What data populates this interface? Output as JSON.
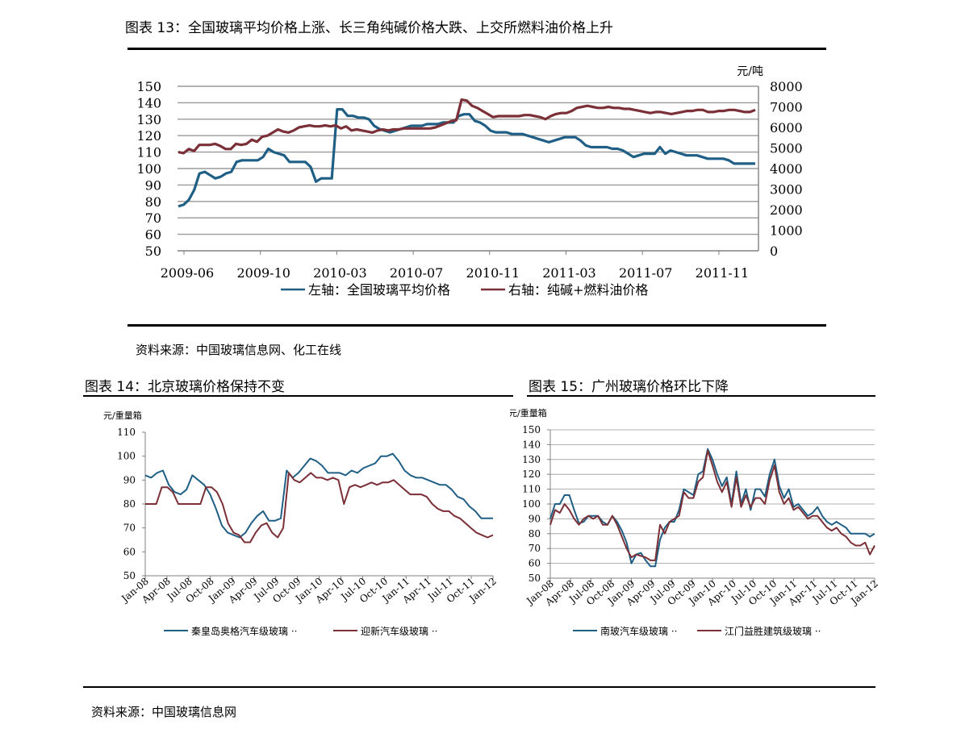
{
  "colors": {
    "blue": "#1f5f85",
    "red": "#7b2f36",
    "grid": "#9a9a9a",
    "axis": "#808080"
  },
  "figure13": {
    "title": "图表 13：全国玻璃平均价格上涨、长三角纯碱价格大跌、上交所燃料油价格上升",
    "source": "资料来源：中国玻璃信息网、化工在线"
  },
  "figure14": {
    "title": "图表 14：北京玻璃价格保持不变"
  },
  "figure15": {
    "title": "图表 15：广州玻璃价格环比下降"
  },
  "bottom_source": "资料来源：中国玻璃信息网",
  "chart_data": [
    {
      "id": "c13",
      "type": "line",
      "unit_right": "元/吨",
      "x_ticks": [
        "2009-06",
        "2009-10",
        "2010-03",
        "2010-07",
        "2010-11",
        "2011-03",
        "2011-07",
        "2011-11"
      ],
      "ylim": [
        50,
        150
      ],
      "y_ticks": [
        50,
        60,
        70,
        80,
        90,
        100,
        110,
        120,
        130,
        140,
        150
      ],
      "y2lim": [
        0,
        8000
      ],
      "y2_ticks": [
        0,
        1000,
        2000,
        3000,
        4000,
        5000,
        6000,
        7000,
        8000
      ],
      "grid": true,
      "legend_position": "bottom",
      "series": [
        {
          "name": "左轴：全国玻璃平均价格",
          "axis": "left",
          "color": "#1f5f85",
          "values": [
            77,
            78,
            81,
            87,
            97,
            98,
            96,
            94,
            95,
            97,
            98,
            104,
            105,
            105,
            105,
            105,
            107,
            112,
            110,
            109,
            108,
            104,
            104,
            104,
            104,
            101,
            92,
            94,
            94,
            94,
            136,
            136,
            132,
            132,
            131,
            131,
            130,
            126,
            124,
            123,
            122,
            123,
            124,
            125,
            126,
            126,
            126,
            127,
            127,
            127,
            128,
            128,
            128,
            132,
            133,
            133,
            129,
            128,
            126,
            123,
            122,
            122,
            122,
            121,
            121,
            121,
            120,
            119,
            118,
            117,
            116,
            117,
            118,
            119,
            119,
            119,
            117,
            114,
            113,
            113,
            113,
            113,
            112,
            112,
            111,
            109,
            107,
            108,
            109,
            109,
            109,
            113,
            109,
            111,
            110,
            109,
            108,
            108,
            108,
            107,
            106,
            106,
            106,
            106,
            105,
            103,
            103,
            103,
            103,
            103
          ]
        },
        {
          "name": "右轴：纯碱+燃料油价格",
          "axis": "right",
          "color": "#7b2f36",
          "values": [
            4800,
            4750,
            4950,
            4850,
            5150,
            5150,
            5150,
            5200,
            5100,
            4950,
            4950,
            5200,
            5150,
            5200,
            5400,
            5300,
            5550,
            5600,
            5750,
            5900,
            5800,
            5750,
            5850,
            6000,
            6050,
            6100,
            6050,
            6050,
            6100,
            6050,
            6100,
            5950,
            6050,
            5850,
            5900,
            5850,
            5800,
            5750,
            5850,
            5900,
            5850,
            5900,
            5900,
            5950,
            5950,
            5950,
            5950,
            5950,
            5950,
            6000,
            6100,
            6200,
            6300,
            6350,
            7350,
            7300,
            7050,
            6950,
            6800,
            6650,
            6500,
            6550,
            6550,
            6550,
            6550,
            6550,
            6600,
            6600,
            6550,
            6500,
            6400,
            6550,
            6650,
            6700,
            6700,
            6800,
            6950,
            7000,
            7050,
            7000,
            6950,
            6950,
            7000,
            6950,
            6950,
            6900,
            6900,
            6850,
            6800,
            6750,
            6700,
            6750,
            6750,
            6700,
            6650,
            6700,
            6750,
            6800,
            6800,
            6850,
            6850,
            6750,
            6750,
            6800,
            6800,
            6850,
            6850,
            6800,
            6750,
            6750,
            6850
          ]
        }
      ]
    },
    {
      "id": "c14",
      "type": "line",
      "unit": "元/重量箱",
      "x_ticks": [
        "Jan-08",
        "Apr-08",
        "Jul-08",
        "Oct-08",
        "Jan-09",
        "Apr-09",
        "Jul-09",
        "Oct-09",
        "Jan-10",
        "Apr-10",
        "Jul-10",
        "Oct-10",
        "Jan-11",
        "Apr-11",
        "Jul-11",
        "Oct-11",
        "Jan-12"
      ],
      "ylim": [
        50,
        110
      ],
      "y_ticks": [
        50,
        60,
        70,
        80,
        90,
        100,
        110
      ],
      "grid": false,
      "legend_position": "bottom",
      "series": [
        {
          "name": "秦皇岛奥格汽车级玻璃 ··",
          "color": "#1f5f85",
          "values": [
            92,
            91,
            93,
            94,
            88,
            85,
            84,
            86,
            92,
            90,
            88,
            84,
            78,
            71,
            68,
            67,
            66,
            68,
            72,
            75,
            77,
            73,
            73,
            74,
            94,
            91,
            93,
            96,
            99,
            98,
            96,
            93,
            93,
            93,
            92,
            94,
            93,
            95,
            96,
            97,
            100,
            100,
            101,
            98,
            94,
            92,
            91,
            91,
            90,
            89,
            88,
            88,
            86,
            83,
            82,
            79,
            77,
            74,
            74,
            74
          ]
        },
        {
          "name": "迎新汽车级玻璃 ··",
          "color": "#7b2f36",
          "values": [
            80,
            80,
            80,
            87,
            87,
            85,
            80,
            80,
            80,
            80,
            80,
            87,
            87,
            85,
            80,
            72,
            68,
            67,
            64,
            64,
            68,
            71,
            72,
            68,
            66,
            70,
            93,
            90,
            89,
            91,
            93,
            91,
            91,
            90,
            91,
            90,
            80,
            87,
            88,
            87,
            88,
            89,
            88,
            89,
            89,
            90,
            88,
            86,
            84,
            84,
            84,
            83,
            80,
            78,
            77,
            77,
            75,
            74,
            72,
            70,
            68,
            67,
            66,
            67
          ]
        }
      ]
    },
    {
      "id": "c15",
      "type": "line",
      "unit": "元/重量箱",
      "x_ticks": [
        "Jan-08",
        "Apr-08",
        "Jul-08",
        "Oct-08",
        "Jan-09",
        "Apr-09",
        "Jul-09",
        "Oct-09",
        "Jan-10",
        "Apr-10",
        "Jul-10",
        "Oct-10",
        "Jan-11",
        "Apr-11",
        "Jul-11",
        "Oct-11",
        "Jan-12"
      ],
      "ylim": [
        50,
        150
      ],
      "y_ticks": [
        50,
        60,
        70,
        80,
        90,
        100,
        110,
        120,
        130,
        140,
        150
      ],
      "grid": true,
      "legend_position": "bottom",
      "series": [
        {
          "name": "南玻汽车级玻璃 ··",
          "color": "#1f5f85",
          "values": [
            90,
            100,
            100,
            106,
            106,
            96,
            87,
            88,
            92,
            92,
            92,
            88,
            86,
            92,
            88,
            82,
            74,
            60,
            66,
            67,
            62,
            58,
            58,
            76,
            84,
            88,
            88,
            96,
            110,
            108,
            106,
            120,
            122,
            137,
            130,
            120,
            112,
            118,
            100,
            122,
            100,
            110,
            96,
            110,
            110,
            105,
            120,
            130,
            112,
            104,
            110,
            98,
            100,
            96,
            92,
            94,
            98,
            92,
            88,
            86,
            88,
            86,
            84,
            80,
            80,
            80,
            80,
            78,
            80
          ]
        },
        {
          "name": "江门益胜建筑级玻璃 ··",
          "color": "#7b2f36",
          "values": [
            86,
            96,
            94,
            100,
            96,
            90,
            86,
            90,
            92,
            90,
            92,
            86,
            86,
            92,
            86,
            78,
            70,
            64,
            66,
            65,
            64,
            62,
            62,
            86,
            80,
            88,
            90,
            92,
            108,
            104,
            104,
            115,
            118,
            136,
            126,
            115,
            108,
            115,
            98,
            118,
            98,
            106,
            98,
            104,
            104,
            100,
            116,
            126,
            108,
            100,
            104,
            96,
            98,
            94,
            90,
            92,
            92,
            88,
            84,
            82,
            84,
            80,
            78,
            74,
            72,
            72,
            74,
            66,
            72
          ]
        }
      ]
    }
  ]
}
